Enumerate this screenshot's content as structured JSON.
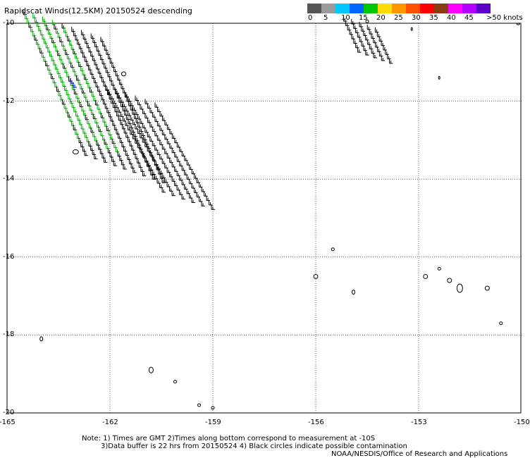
{
  "title": "Rapidscat Winds(12.5KM) 20150524 descending",
  "legend": {
    "swatches": [
      "#555555",
      "#9a9a9a",
      "#00c8ff",
      "#0064ff",
      "#00c800",
      "#ffdc00",
      "#ff9600",
      "#ff5000",
      "#ff0000",
      "#8c3c14",
      "#ff00ff",
      "#b400ff",
      "#5a00c8"
    ],
    "labels": [
      "0",
      "5",
      "10",
      "15",
      "20",
      "25",
      "30",
      "35",
      "40",
      "45",
      ">50 knots"
    ]
  },
  "map": {
    "y_labels": [
      "-10",
      "-12",
      "-14",
      "-16",
      "-18",
      "-20"
    ],
    "x_labels": [
      "-165",
      "-162",
      "-159",
      "-156",
      "-153",
      "-150"
    ],
    "lon_range": [
      -165,
      -150
    ],
    "lat_range": [
      -10,
      -20
    ],
    "grid_color": "#000000",
    "barb_color_main": "#000000",
    "barb_color_light": "#00aa00",
    "barb_color_accent": "#0000ff"
  },
  "notes": {
    "line1": "Note: 1) Times are GMT 2)Times along bottom correspond to measurement at -10S",
    "line2": "3)Data buffer is 22 hrs from 20150524 4) Black circles indicate possible contamination",
    "line3": "NOAA/NESDIS/Office of Research and Applications"
  }
}
